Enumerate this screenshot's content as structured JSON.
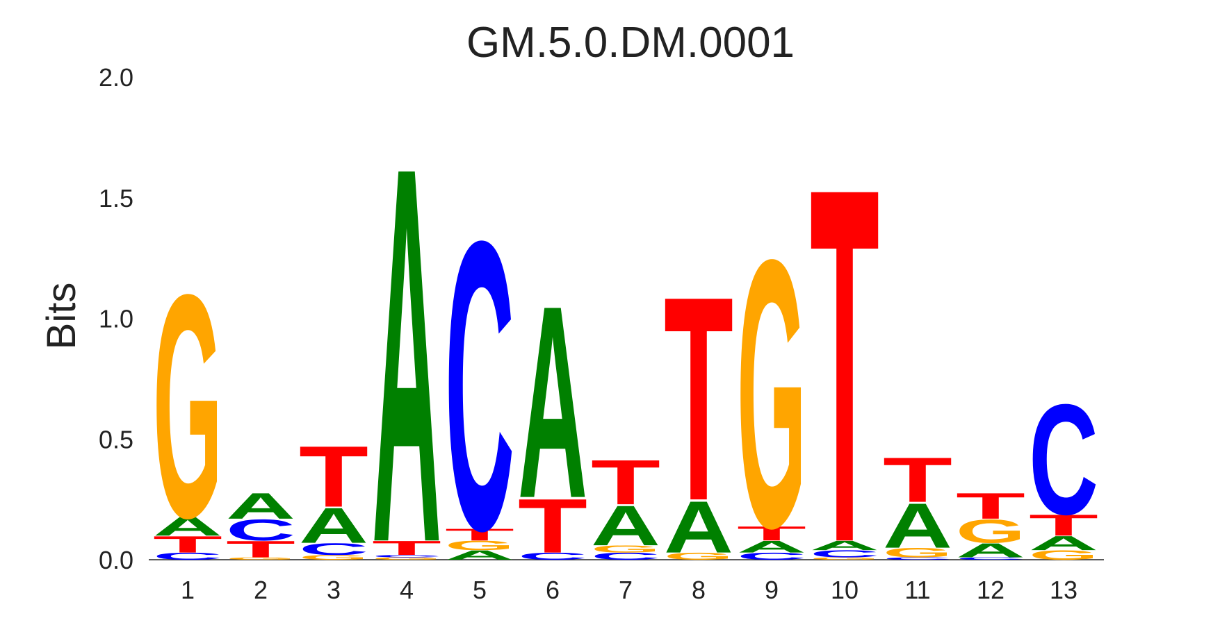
{
  "chart_data": {
    "type": "sequence-logo",
    "title": "GM.5.0.DM.0001",
    "ylabel": "Bits",
    "ylim": [
      0,
      2.0
    ],
    "yticks": [
      "0.0",
      "0.5",
      "1.0",
      "1.5",
      "2.0"
    ],
    "xticks": [
      "1",
      "2",
      "3",
      "4",
      "5",
      "6",
      "7",
      "8",
      "9",
      "10",
      "11",
      "12",
      "13"
    ],
    "grid": false,
    "colors": {
      "A": "#008000",
      "C": "#0000ff",
      "G": "#ffa500",
      "T": "#ff0000"
    },
    "positions": [
      {
        "pos": "1",
        "stack": [
          [
            "C",
            0.03
          ],
          [
            "T",
            0.07
          ],
          [
            "A",
            0.08
          ],
          [
            "G",
            0.95
          ]
        ]
      },
      {
        "pos": "2",
        "stack": [
          [
            "G",
            0.01
          ],
          [
            "T",
            0.07
          ],
          [
            "C",
            0.09
          ],
          [
            "A",
            0.11
          ]
        ]
      },
      {
        "pos": "3",
        "stack": [
          [
            "G",
            0.02
          ],
          [
            "C",
            0.05
          ],
          [
            "A",
            0.15
          ],
          [
            "T",
            0.26
          ]
        ]
      },
      {
        "pos": "4",
        "stack": [
          [
            "G",
            0.01
          ],
          [
            "C",
            0.01
          ],
          [
            "T",
            0.06
          ],
          [
            "A",
            1.6
          ]
        ]
      },
      {
        "pos": "5",
        "stack": [
          [
            "A",
            0.04
          ],
          [
            "G",
            0.04
          ],
          [
            "T",
            0.05
          ],
          [
            "C",
            1.23
          ]
        ]
      },
      {
        "pos": "6",
        "stack": [
          [
            "C",
            0.03
          ],
          [
            "T",
            0.23
          ],
          [
            "A",
            0.82
          ]
        ]
      },
      {
        "pos": "7",
        "stack": [
          [
            "C",
            0.03
          ],
          [
            "G",
            0.03
          ],
          [
            "A",
            0.17
          ],
          [
            "T",
            0.19
          ]
        ]
      },
      {
        "pos": "8",
        "stack": [
          [
            "G",
            0.03
          ],
          [
            "A",
            0.22
          ],
          [
            "T",
            0.87
          ]
        ]
      },
      {
        "pos": "9",
        "stack": [
          [
            "C",
            0.03
          ],
          [
            "A",
            0.05
          ],
          [
            "T",
            0.06
          ],
          [
            "G",
            1.14
          ]
        ]
      },
      {
        "pos": "10",
        "stack": [
          [
            "G",
            0.01
          ],
          [
            "C",
            0.03
          ],
          [
            "A",
            0.04
          ],
          [
            "T",
            1.51
          ]
        ]
      },
      {
        "pos": "11",
        "stack": [
          [
            "C",
            0.01
          ],
          [
            "G",
            0.04
          ],
          [
            "A",
            0.19
          ],
          [
            "T",
            0.19
          ]
        ]
      },
      {
        "pos": "12",
        "stack": [
          [
            "C",
            0.01
          ],
          [
            "A",
            0.06
          ],
          [
            "G",
            0.1
          ],
          [
            "T",
            0.11
          ]
        ]
      },
      {
        "pos": "13",
        "stack": [
          [
            "G",
            0.04
          ],
          [
            "A",
            0.06
          ],
          [
            "T",
            0.09
          ],
          [
            "C",
            0.47
          ]
        ]
      }
    ]
  }
}
